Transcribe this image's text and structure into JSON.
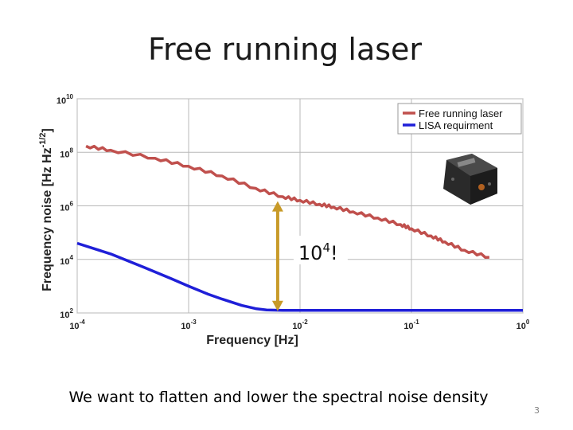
{
  "slide": {
    "title": "Free running laser",
    "caption": "We want to flatten and lower the spectral noise density",
    "page_number": "3"
  },
  "chart_data": {
    "type": "line",
    "title": "",
    "xlabel": "Frequency  [Hz]",
    "ylabel_main": "Frequency noise [Hz Hz",
    "ylabel_exp": "-1/2",
    "ylabel_end": "]",
    "xscale": "log",
    "yscale": "log",
    "xlim": [
      0.0001,
      1
    ],
    "ylim": [
      100,
      10000000000
    ],
    "grid": true,
    "legend_position": "top-right",
    "x_ticks": [
      {
        "base": "10",
        "exp": "-4",
        "value": 0.0001
      },
      {
        "base": "10",
        "exp": "-3",
        "value": 0.001
      },
      {
        "base": "10",
        "exp": "-2",
        "value": 0.01
      },
      {
        "base": "10",
        "exp": "-1",
        "value": 0.1
      },
      {
        "base": "10",
        "exp": "0",
        "value": 1
      }
    ],
    "y_ticks": [
      {
        "base": "10",
        "exp": "2",
        "value": 100
      },
      {
        "base": "10",
        "exp": "4",
        "value": 10000
      },
      {
        "base": "10",
        "exp": "6",
        "value": 1000000
      },
      {
        "base": "10",
        "exp": "8",
        "value": 100000000
      },
      {
        "base": "10",
        "exp": "10",
        "value": 10000000000
      }
    ],
    "series": [
      {
        "name": "Free running laser",
        "color": "#c0504d",
        "x": [
          0.00012,
          0.0002,
          0.0005,
          0.001,
          0.002,
          0.004,
          0.007,
          0.01,
          0.015,
          0.02,
          0.03,
          0.05,
          0.08,
          0.1,
          0.15,
          0.2,
          0.3,
          0.5
        ],
        "y": [
          170000000,
          120000000,
          60000000,
          30000000,
          13000000,
          4500000,
          2200000,
          1600000,
          1150000,
          900000,
          600000,
          350000,
          200000,
          140000,
          75000,
          45000,
          22000,
          12000
        ]
      },
      {
        "name": "LISA requirment",
        "color": "#1f1fd8",
        "x": [
          0.0001,
          0.0002,
          0.0004,
          0.0007,
          0.001,
          0.0015,
          0.002,
          0.003,
          0.004,
          0.005,
          0.007,
          0.01,
          0.1,
          1
        ],
        "y": [
          40000,
          16000,
          5000,
          1900,
          1000,
          500,
          330,
          190,
          145,
          130,
          125,
          125,
          125,
          125
        ]
      }
    ],
    "annotation": {
      "base": "10",
      "exp": "4",
      "suffix": "!",
      "arrow_x": 0.0063,
      "arrow_from": 1400000,
      "arrow_to": 125,
      "arrow_color": "#c89a28"
    },
    "inset_image": "laser-device"
  }
}
